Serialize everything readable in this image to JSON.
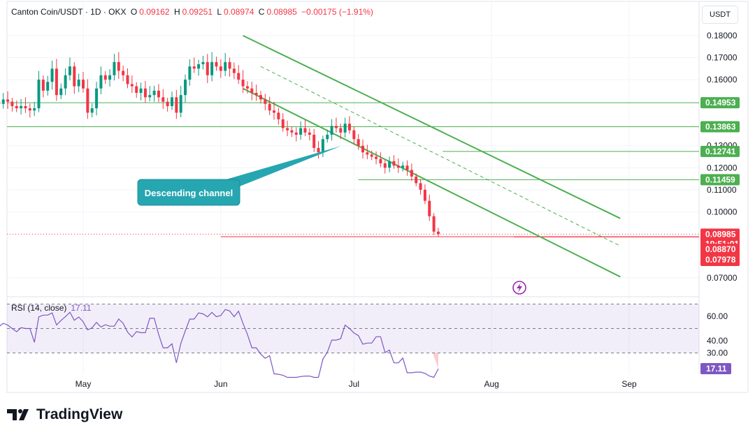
{
  "header": {
    "symbol": "Canton Coin/USDT · 1D · OKX",
    "open_label": "O",
    "open": "0.09162",
    "high_label": "H",
    "high": "0.09251",
    "low_label": "L",
    "low": "0.08974",
    "close_label": "C",
    "close": "0.08985",
    "change": "−0.00175 (−1.91%)"
  },
  "currency": "USDT",
  "annotation": "Descending channel",
  "rsi_legend": {
    "label": "RSI (14, close)",
    "value": "17.11"
  },
  "brand": "TradingView",
  "colors": {
    "up": "#089981",
    "down": "#f23645",
    "channel": "#4caf50",
    "rsi": "#7e57c2",
    "level_red": "#f23645",
    "annotation": "#26a6b0"
  },
  "chart_data": {
    "type": "candlestick",
    "price_axis": {
      "ticks": [
        "0.18000",
        "0.17000",
        "0.16000",
        "0.13000",
        "0.12000",
        "0.11000",
        "0.10000",
        "0.07000"
      ],
      "tick_values": [
        0.18,
        0.17,
        0.16,
        0.13,
        0.12,
        0.11,
        0.1,
        0.07
      ]
    },
    "time_axis": {
      "labels": [
        "May",
        "Jun",
        "Jul",
        "Aug",
        "Sep"
      ],
      "label_dates": [
        "2025-05-01",
        "2025-06-01",
        "2025-07-01",
        "2025-08-01",
        "2025-09-01"
      ]
    },
    "levels": [
      {
        "value": "0.14953",
        "price": 0.14953,
        "color": "#4caf50",
        "tag": "#4caf50",
        "start": "2025-04-01"
      },
      {
        "value": "0.13863",
        "price": 0.13863,
        "color": "#4caf50",
        "tag": "#4caf50",
        "start": "2025-04-01"
      },
      {
        "value": "0.12741",
        "price": 0.12741,
        "color": "#4caf50",
        "tag": "#4caf50",
        "start": "2025-07-21"
      },
      {
        "value": "0.11459",
        "price": 0.11459,
        "color": "#4caf50",
        "tag": "#4caf50",
        "start": "2025-07-02"
      },
      {
        "value": "0.08870",
        "price": 0.0887,
        "color": "#f23645",
        "tag": "#f23645",
        "start": "2025-06-01"
      },
      {
        "value": "0.07978",
        "price": 0.07978,
        "color": "#f23645",
        "tag": "#f23645",
        "start": null
      }
    ],
    "last_price": {
      "value": "0.08985",
      "countdown": "19:51:01"
    },
    "channel": {
      "upper": [
        [
          "2025-06-06",
          0.18
        ],
        [
          "2025-08-30",
          0.097
        ]
      ],
      "lower": [
        [
          "2025-06-06",
          0.156
        ],
        [
          "2025-08-30",
          0.0705
        ]
      ],
      "mid": [
        [
          "2025-06-10",
          0.166
        ],
        [
          "2025-08-30",
          0.0845
        ]
      ]
    },
    "candles": {
      "start_date": "2025-04-01",
      "close": [
        0.148,
        0.149,
        0.1475,
        0.147,
        0.146,
        0.154,
        0.152,
        0.146,
        0.15,
        0.154,
        0.15,
        0.149,
        0.151,
        0.15,
        0.148,
        0.147,
        0.148,
        0.147,
        0.146,
        0.147,
        0.16,
        0.155,
        0.159,
        0.165,
        0.153,
        0.156,
        0.162,
        0.166,
        0.157,
        0.16,
        0.156,
        0.145,
        0.147,
        0.156,
        0.162,
        0.16,
        0.162,
        0.168,
        0.164,
        0.162,
        0.158,
        0.157,
        0.154,
        0.156,
        0.152,
        0.153,
        0.155,
        0.152,
        0.15,
        0.148,
        0.152,
        0.145,
        0.153,
        0.16,
        0.166,
        0.165,
        0.167,
        0.168,
        0.162,
        0.168,
        0.166,
        0.164,
        0.168,
        0.165,
        0.163,
        0.16,
        0.157,
        0.156,
        0.154,
        0.153,
        0.151,
        0.149,
        0.146,
        0.145,
        0.142,
        0.138,
        0.137,
        0.136,
        0.135,
        0.138,
        0.136,
        0.135,
        0.129,
        0.127,
        0.133,
        0.135,
        0.139,
        0.138,
        0.136,
        0.14,
        0.137,
        0.133,
        0.13,
        0.127,
        0.126,
        0.125,
        0.124,
        0.122,
        0.12,
        0.123,
        0.121,
        0.12,
        0.121,
        0.119,
        0.116,
        0.113,
        0.11,
        0.105,
        0.098,
        0.091,
        0.08985
      ],
      "ohlc_note": "daily candles Apr 1 – Aug 6 2025"
    },
    "rsi": {
      "label": "RSI (14, close)",
      "current": "17.11",
      "ticks": [
        "60.00",
        "40.00",
        "30.00"
      ],
      "upper_band": 70,
      "middle": 50,
      "lower_band": 30
    }
  }
}
